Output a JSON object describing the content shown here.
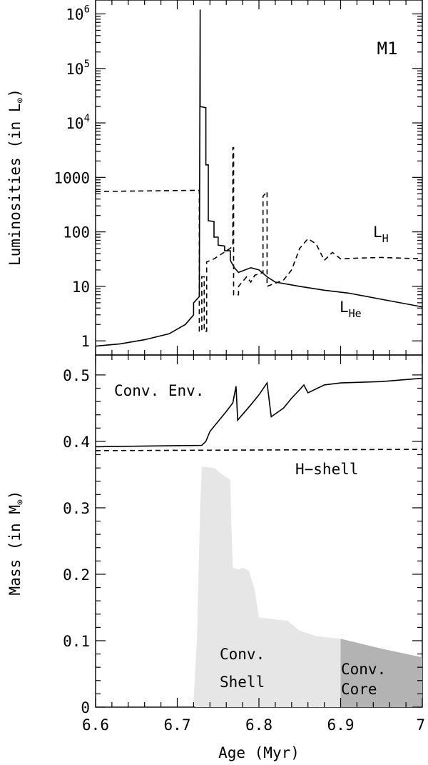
{
  "chart_data": [
    {
      "type": "line",
      "panel": "top",
      "label": "M1",
      "ylabel": "Luminosities (in L",
      "ylabel_sun": "⊙",
      "ylabel_close": ")",
      "yscale": "log",
      "xlim": [
        6.6,
        7.0
      ],
      "ylim": [
        0.55,
        1800000
      ],
      "yticks": [
        {
          "v": 1,
          "base": "1",
          "sup": ""
        },
        {
          "v": 10,
          "base": "10",
          "sup": ""
        },
        {
          "v": 100,
          "base": "100",
          "sup": ""
        },
        {
          "v": 1000,
          "base": "1000",
          "sup": ""
        },
        {
          "v": 10000,
          "base": "10",
          "sup": "4"
        },
        {
          "v": 100000,
          "base": "10",
          "sup": "5"
        },
        {
          "v": 1000000,
          "base": "10",
          "sup": "6"
        }
      ],
      "series": [
        {
          "name": "L_He",
          "label_main": "L",
          "label_sub": "He",
          "style": "solid",
          "points": [
            [
              6.6,
              0.8
            ],
            [
              6.63,
              0.88
            ],
            [
              6.66,
              1.05
            ],
            [
              6.69,
              1.35
            ],
            [
              6.71,
              2.0
            ],
            [
              6.72,
              3.0
            ],
            [
              6.72,
              5.0
            ],
            [
              6.727,
              6.5
            ],
            [
              6.728,
              1200000
            ],
            [
              6.728,
              20000
            ],
            [
              6.735,
              19000
            ],
            [
              6.735,
              1700
            ],
            [
              6.738,
              1700
            ],
            [
              6.738,
              160
            ],
            [
              6.745,
              155
            ],
            [
              6.745,
              80
            ],
            [
              6.75,
              80
            ],
            [
              6.75,
              57
            ],
            [
              6.758,
              55
            ],
            [
              6.758,
              45
            ],
            [
              6.765,
              45
            ],
            [
              6.765,
              30
            ],
            [
              6.77,
              22
            ],
            [
              6.775,
              18
            ],
            [
              6.79,
              22
            ],
            [
              6.8,
              20
            ],
            [
              6.81,
              15
            ],
            [
              6.82,
              12
            ],
            [
              6.85,
              10
            ],
            [
              6.88,
              8.5
            ],
            [
              6.91,
              7.5
            ],
            [
              6.95,
              5.8
            ],
            [
              7.0,
              4.2
            ]
          ]
        },
        {
          "name": "L_H",
          "label_main": "L",
          "label_sub": "H",
          "style": "dashed",
          "points": [
            [
              6.6,
              550
            ],
            [
              6.727,
              580
            ],
            [
              6.727,
              1.5
            ],
            [
              6.73,
              1.5
            ],
            [
              6.73,
              15
            ],
            [
              6.733,
              15
            ],
            [
              6.733,
              1.5
            ],
            [
              6.736,
              1.5
            ],
            [
              6.736,
              28
            ],
            [
              6.745,
              32
            ],
            [
              6.755,
              40
            ],
            [
              6.765,
              50
            ],
            [
              6.768,
              55
            ],
            [
              6.768,
              3500
            ],
            [
              6.769,
              3500
            ],
            [
              6.769,
              7
            ],
            [
              6.775,
              7
            ],
            [
              6.775,
              10
            ],
            [
              6.785,
              15
            ],
            [
              6.79,
              12
            ],
            [
              6.795,
              16
            ],
            [
              6.805,
              18
            ],
            [
              6.805,
              450
            ],
            [
              6.81,
              550
            ],
            [
              6.81,
              10
            ],
            [
              6.83,
              13
            ],
            [
              6.84,
              20
            ],
            [
              6.85,
              50
            ],
            [
              6.86,
              75
            ],
            [
              6.87,
              60
            ],
            [
              6.88,
              30
            ],
            [
              6.89,
              42
            ],
            [
              6.9,
              32
            ],
            [
              6.92,
              33
            ],
            [
              6.95,
              34
            ],
            [
              7.0,
              32
            ]
          ]
        }
      ]
    },
    {
      "type": "area",
      "panel": "bottom",
      "ylabel": "Mass (in M",
      "ylabel_sun": "⊙",
      "ylabel_close": ")",
      "xlabel": "Age (Myr)",
      "xlim": [
        6.6,
        7.0
      ],
      "ylim": [
        0,
        0.53
      ],
      "xticks": [
        "6.6",
        "6.7",
        "6.8",
        "6.9",
        "7"
      ],
      "xtick_values": [
        6.6,
        6.7,
        6.8,
        6.9,
        7.0
      ],
      "yticks": [
        "0",
        "0.1",
        "0.2",
        "0.3",
        "0.4",
        "0.5"
      ],
      "ytick_values": [
        0,
        0.1,
        0.2,
        0.3,
        0.4,
        0.5
      ],
      "annotations": {
        "conv_env": "Conv. Env.",
        "h_shell": "H−shell",
        "conv_shell_1": "Conv.",
        "conv_shell_2": "Shell",
        "conv_core_1": "Conv.",
        "conv_core_2": "Core"
      },
      "series": [
        {
          "name": "Conv. Env.",
          "style": "solid",
          "points": [
            [
              6.6,
              0.392
            ],
            [
              6.73,
              0.394
            ],
            [
              6.735,
              0.4
            ],
            [
              6.74,
              0.415
            ],
            [
              6.75,
              0.43
            ],
            [
              6.76,
              0.445
            ],
            [
              6.768,
              0.458
            ],
            [
              6.772,
              0.483
            ],
            [
              6.774,
              0.432
            ],
            [
              6.79,
              0.455
            ],
            [
              6.8,
              0.47
            ],
            [
              6.81,
              0.488
            ],
            [
              6.815,
              0.437
            ],
            [
              6.83,
              0.45
            ],
            [
              6.84,
              0.465
            ],
            [
              6.85,
              0.478
            ],
            [
              6.855,
              0.485
            ],
            [
              6.86,
              0.473
            ],
            [
              6.88,
              0.485
            ],
            [
              6.9,
              0.488
            ],
            [
              6.95,
              0.49
            ],
            [
              7.0,
              0.495
            ]
          ]
        },
        {
          "name": "H-shell",
          "style": "dashed",
          "points": [
            [
              6.6,
              0.386
            ],
            [
              7.0,
              0.388
            ]
          ]
        },
        {
          "name": "Conv. Shell",
          "fill": "#e6e6e6",
          "points": [
            [
              6.72,
              0.01
            ],
            [
              6.724,
              0.1
            ],
            [
              6.728,
              0.3
            ],
            [
              6.73,
              0.362
            ],
            [
              6.745,
              0.36
            ],
            [
              6.755,
              0.35
            ],
            [
              6.765,
              0.342
            ],
            [
              6.766,
              0.28
            ],
            [
              6.768,
              0.21
            ],
            [
              6.775,
              0.207
            ],
            [
              6.78,
              0.21
            ],
            [
              6.788,
              0.205
            ],
            [
              6.795,
              0.175
            ],
            [
              6.8,
              0.135
            ],
            [
              6.82,
              0.132
            ],
            [
              6.835,
              0.13
            ],
            [
              6.85,
              0.115
            ],
            [
              6.87,
              0.107
            ],
            [
              6.9,
              0.103
            ],
            [
              6.9,
              0.0
            ],
            [
              6.722,
              0.0
            ]
          ]
        },
        {
          "name": "Conv. Core",
          "fill": "#b3b3b3",
          "points": [
            [
              6.9,
              0.103
            ],
            [
              6.95,
              0.088
            ],
            [
              7.0,
              0.075
            ],
            [
              7.0,
              0.0
            ],
            [
              6.9,
              0.0
            ]
          ]
        }
      ]
    }
  ]
}
